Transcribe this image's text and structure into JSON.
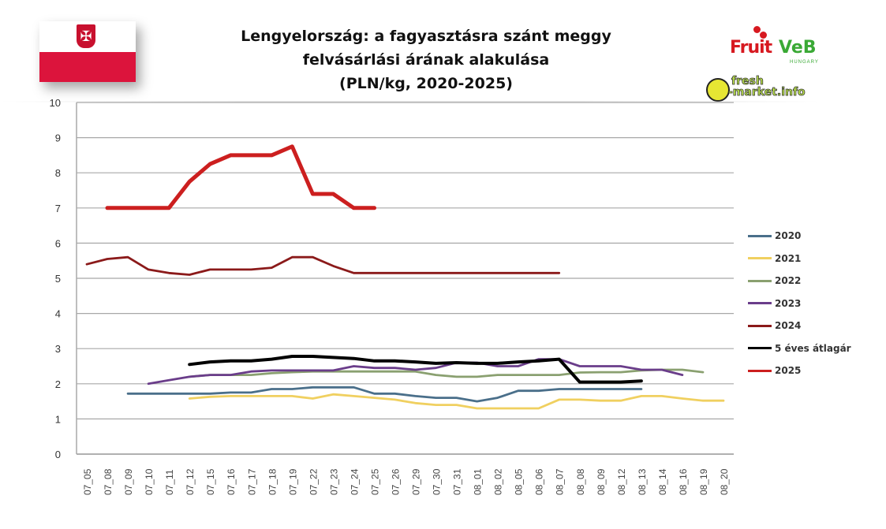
{
  "flag": {
    "country": "Poland",
    "icon": "poland-flag-icon"
  },
  "logos": {
    "fruitveb": {
      "text_fruit": "Fruit",
      "text_veb": "VeB",
      "subtext": "HUNGARY"
    },
    "freshmarket": {
      "line1": "fresh",
      "line2": "-market.info"
    }
  },
  "chart_data": {
    "type": "line",
    "title": "Lengyelország: a fagyasztásra szánt meggy felvásárlási árának alakulása (PLN/kg, 2020-2025)",
    "title_lines": [
      "Lengyelország: a fagyasztásra szánt meggy",
      "felvásárlási árának alakulása",
      "(PLN/kg, 2020-2025)"
    ],
    "xlabel": "",
    "ylabel": "",
    "ylim": [
      0,
      10
    ],
    "yticks": [
      "0",
      "1",
      "2",
      "3",
      "4",
      "5",
      "6",
      "7",
      "8",
      "9",
      "10"
    ],
    "grid": true,
    "legend_position": "right",
    "categories": [
      "07_05",
      "07_08",
      "07_09",
      "07_10",
      "07_11",
      "07_12",
      "07_15",
      "07_16",
      "07_17",
      "07_18",
      "07_19",
      "07_22",
      "07_23",
      "07_24",
      "07_25",
      "07_26",
      "07_29",
      "07_30",
      "07_31",
      "08_01",
      "08_02",
      "08_05",
      "08_06",
      "08_07",
      "08_08",
      "08_09",
      "08_12",
      "08_13",
      "08_14",
      "08_16",
      "08_19",
      "08_20"
    ],
    "series": [
      {
        "name": "2020",
        "color": "#4a6f8a",
        "values": [
          null,
          null,
          1.72,
          1.72,
          1.72,
          1.72,
          1.72,
          1.75,
          1.75,
          1.85,
          1.85,
          1.9,
          1.9,
          1.9,
          1.72,
          1.72,
          1.65,
          1.6,
          1.6,
          1.5,
          1.6,
          1.8,
          1.8,
          1.85,
          1.85,
          1.85,
          1.85,
          1.85,
          null,
          null,
          null,
          null
        ]
      },
      {
        "name": "2021",
        "color": "#f0d060",
        "values": [
          null,
          null,
          null,
          null,
          null,
          1.58,
          1.63,
          1.65,
          1.65,
          1.65,
          1.65,
          1.58,
          1.7,
          1.65,
          1.6,
          1.55,
          1.45,
          1.4,
          1.4,
          1.3,
          1.3,
          1.3,
          1.3,
          1.55,
          1.55,
          1.52,
          1.52,
          1.65,
          1.65,
          1.58,
          1.52,
          1.52
        ]
      },
      {
        "name": "2022",
        "color": "#8aa070",
        "values": [
          null,
          null,
          null,
          null,
          null,
          2.2,
          2.25,
          2.25,
          2.25,
          2.3,
          2.33,
          2.35,
          2.35,
          2.35,
          2.35,
          2.35,
          2.35,
          2.25,
          2.2,
          2.2,
          2.25,
          2.25,
          2.25,
          2.25,
          2.32,
          2.33,
          2.33,
          2.38,
          2.4,
          2.4,
          2.33,
          null
        ]
      },
      {
        "name": "2023",
        "color": "#6a3d8a",
        "values": [
          null,
          null,
          null,
          2.0,
          2.1,
          2.2,
          2.25,
          2.25,
          2.35,
          2.38,
          2.38,
          2.38,
          2.38,
          2.5,
          2.45,
          2.45,
          2.4,
          2.45,
          2.6,
          2.6,
          2.5,
          2.5,
          2.7,
          2.7,
          2.5,
          2.5,
          2.5,
          2.4,
          2.4,
          2.25,
          null,
          null
        ]
      },
      {
        "name": "2024",
        "color": "#8b1a1a",
        "values": [
          5.4,
          5.55,
          5.6,
          5.25,
          5.15,
          5.1,
          5.25,
          5.25,
          5.25,
          5.3,
          5.6,
          5.6,
          5.35,
          5.15,
          5.15,
          5.15,
          5.15,
          5.15,
          5.15,
          5.15,
          5.15,
          5.15,
          5.15,
          5.15,
          null,
          null,
          null,
          null,
          null,
          null,
          null,
          null
        ]
      },
      {
        "name": "5 éves átlagár",
        "color": "#000000",
        "values": [
          null,
          null,
          null,
          null,
          null,
          2.55,
          2.62,
          2.65,
          2.65,
          2.7,
          2.78,
          2.78,
          2.75,
          2.72,
          2.65,
          2.65,
          2.62,
          2.58,
          2.6,
          2.58,
          2.58,
          2.62,
          2.65,
          2.7,
          2.05,
          2.05,
          2.05,
          2.08,
          null,
          null,
          null,
          null
        ]
      },
      {
        "name": "2025",
        "color": "#cc1f1f",
        "values": [
          null,
          7.0,
          7.0,
          7.0,
          7.0,
          7.75,
          8.25,
          8.5,
          8.5,
          8.5,
          8.75,
          7.4,
          7.4,
          7.0,
          7.0,
          null,
          null,
          null,
          null,
          null,
          null,
          null,
          null,
          null,
          null,
          null,
          null,
          null,
          null,
          null,
          null,
          null
        ]
      }
    ]
  }
}
